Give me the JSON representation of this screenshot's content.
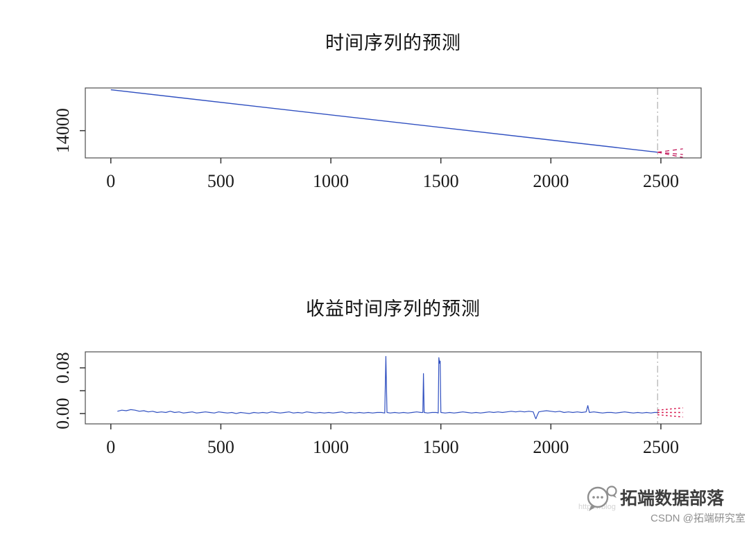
{
  "page": {
    "background": "#ffffff"
  },
  "chart_data": [
    {
      "type": "line",
      "title": "时间序列的预测",
      "xlabel": "",
      "ylabel": "",
      "xlim": [
        -116,
        2683
      ],
      "ylim": [
        12800,
        15880
      ],
      "grid": false,
      "legend": "none",
      "xticks": [
        0,
        500,
        1000,
        1500,
        2000,
        2500
      ],
      "yticks": [
        {
          "value": 14000,
          "label": "14000"
        }
      ],
      "vline_x": 2485,
      "vline_color": "#a0a0a0",
      "series": [
        {
          "name": "historical",
          "color": "#2f4fc0",
          "style": "solid",
          "width": 1.4,
          "points": [
            [
              0,
              15800
            ],
            [
              2485,
              13050
            ]
          ]
        },
        {
          "name": "forecast-upper",
          "color": "#c2185b",
          "style": "dashed",
          "width": 1.3,
          "points": [
            [
              2485,
              13050
            ],
            [
              2600,
              13200
            ]
          ]
        },
        {
          "name": "forecast-mean",
          "color": "#c2185b",
          "style": "dashed",
          "width": 1.3,
          "points": [
            [
              2485,
              13050
            ],
            [
              2600,
              12950
            ]
          ]
        },
        {
          "name": "forecast-lower",
          "color": "#c2185b",
          "style": "dashed",
          "width": 1.3,
          "points": [
            [
              2485,
              13050
            ],
            [
              2600,
              12820
            ]
          ]
        }
      ]
    },
    {
      "type": "line",
      "title": "收益时间序列的预测",
      "xlabel": "",
      "ylabel": "",
      "xlim": [
        -116,
        2683
      ],
      "ylim": [
        -0.018,
        0.108
      ],
      "grid": false,
      "legend": "none",
      "xticks": [
        0,
        500,
        1000,
        1500,
        2000,
        2500
      ],
      "yticks": [
        {
          "value": 0.0,
          "label": "0.00"
        },
        {
          "value": 0.04,
          "label": ""
        },
        {
          "value": 0.08,
          "label": "0.08"
        }
      ],
      "vline_x": 2485,
      "vline_color": "#a0a0a0",
      "series": [
        {
          "name": "returns",
          "color": "#2f4fc0",
          "style": "solid",
          "width": 1.2,
          "points": [
            [
              30,
              0.004
            ],
            [
              50,
              0.006
            ],
            [
              70,
              0.005
            ],
            [
              90,
              0.007
            ],
            [
              110,
              0.006
            ],
            [
              130,
              0.004
            ],
            [
              150,
              0.005
            ],
            [
              170,
              0.003
            ],
            [
              190,
              0.004
            ],
            [
              210,
              0.002
            ],
            [
              230,
              0.003
            ],
            [
              250,
              0.002
            ],
            [
              270,
              0.004
            ],
            [
              290,
              0.002
            ],
            [
              310,
              0.003
            ],
            [
              330,
              0.001
            ],
            [
              350,
              0.002
            ],
            [
              370,
              0.003
            ],
            [
              390,
              0.001
            ],
            [
              410,
              0.002
            ],
            [
              430,
              0.003
            ],
            [
              450,
              0.002
            ],
            [
              470,
              0.001
            ],
            [
              490,
              0.003
            ],
            [
              510,
              0.002
            ],
            [
              530,
              0.001
            ],
            [
              550,
              0.002
            ],
            [
              570,
              0.0
            ],
            [
              590,
              0.002
            ],
            [
              610,
              0.001
            ],
            [
              630,
              0.0
            ],
            [
              650,
              0.002
            ],
            [
              670,
              0.001
            ],
            [
              690,
              0.002
            ],
            [
              710,
              0.001
            ],
            [
              730,
              0.003
            ],
            [
              750,
              0.002
            ],
            [
              770,
              0.001
            ],
            [
              790,
              0.002
            ],
            [
              810,
              0.003
            ],
            [
              830,
              0.001
            ],
            [
              850,
              0.002
            ],
            [
              870,
              0.001
            ],
            [
              890,
              0.003
            ],
            [
              910,
              0.002
            ],
            [
              930,
              0.001
            ],
            [
              950,
              0.002
            ],
            [
              970,
              0.001
            ],
            [
              990,
              0.002
            ],
            [
              1010,
              0.001
            ],
            [
              1030,
              0.002
            ],
            [
              1050,
              0.003
            ],
            [
              1070,
              0.001
            ],
            [
              1090,
              0.002
            ],
            [
              1110,
              0.001
            ],
            [
              1130,
              0.002
            ],
            [
              1150,
              0.001
            ],
            [
              1170,
              0.002
            ],
            [
              1190,
              0.001
            ],
            [
              1210,
              0.002
            ],
            [
              1230,
              0.002
            ],
            [
              1245,
              0.001
            ],
            [
              1250,
              0.1
            ],
            [
              1255,
              0.002
            ],
            [
              1270,
              0.001
            ],
            [
              1290,
              0.002
            ],
            [
              1310,
              0.001
            ],
            [
              1330,
              0.002
            ],
            [
              1350,
              0.001
            ],
            [
              1370,
              0.002
            ],
            [
              1390,
              0.003
            ],
            [
              1410,
              0.002
            ],
            [
              1418,
              0.002
            ],
            [
              1421,
              0.07
            ],
            [
              1424,
              0.002
            ],
            [
              1440,
              0.001
            ],
            [
              1460,
              0.002
            ],
            [
              1480,
              0.002
            ],
            [
              1488,
              0.001
            ],
            [
              1491,
              0.098
            ],
            [
              1494,
              0.088
            ],
            [
              1497,
              0.092
            ],
            [
              1500,
              0.002
            ],
            [
              1520,
              0.001
            ],
            [
              1540,
              0.002
            ],
            [
              1560,
              0.001
            ],
            [
              1580,
              0.002
            ],
            [
              1600,
              0.003
            ],
            [
              1620,
              0.002
            ],
            [
              1640,
              0.001
            ],
            [
              1660,
              0.002
            ],
            [
              1680,
              0.001
            ],
            [
              1700,
              0.002
            ],
            [
              1720,
              0.003
            ],
            [
              1740,
              0.002
            ],
            [
              1760,
              0.003
            ],
            [
              1780,
              0.002
            ],
            [
              1800,
              0.003
            ],
            [
              1820,
              0.004
            ],
            [
              1840,
              0.003
            ],
            [
              1860,
              0.004
            ],
            [
              1880,
              0.003
            ],
            [
              1900,
              0.004
            ],
            [
              1920,
              0.003
            ],
            [
              1928,
              -0.006
            ],
            [
              1932,
              -0.009
            ],
            [
              1936,
              -0.005
            ],
            [
              1945,
              0.003
            ],
            [
              1960,
              0.004
            ],
            [
              1980,
              0.005
            ],
            [
              2000,
              0.004
            ],
            [
              2020,
              0.003
            ],
            [
              2040,
              0.004
            ],
            [
              2060,
              0.002
            ],
            [
              2080,
              0.003
            ],
            [
              2100,
              0.002
            ],
            [
              2120,
              0.003
            ],
            [
              2140,
              0.002
            ],
            [
              2160,
              0.003
            ],
            [
              2168,
              0.014
            ],
            [
              2175,
              0.002
            ],
            [
              2195,
              0.003
            ],
            [
              2215,
              0.002
            ],
            [
              2235,
              0.001
            ],
            [
              2255,
              0.002
            ],
            [
              2275,
              0.002
            ],
            [
              2295,
              0.001
            ],
            [
              2315,
              0.002
            ],
            [
              2335,
              0.003
            ],
            [
              2355,
              0.002
            ],
            [
              2375,
              0.001
            ],
            [
              2395,
              0.002
            ],
            [
              2415,
              0.001
            ],
            [
              2435,
              0.002
            ],
            [
              2455,
              0.001
            ],
            [
              2470,
              0.002
            ],
            [
              2485,
              0.002
            ]
          ]
        },
        {
          "name": "forecast-upper",
          "color": "#d4003c",
          "style": "dotted",
          "width": 1.4,
          "points": [
            [
              2485,
              0.006
            ],
            [
              2600,
              0.01
            ]
          ]
        },
        {
          "name": "forecast-mean",
          "color": "#d4003c",
          "style": "dotted",
          "width": 1.4,
          "points": [
            [
              2485,
              0.002
            ],
            [
              2600,
              0.002
            ]
          ]
        },
        {
          "name": "forecast-lower",
          "color": "#d4003c",
          "style": "dotted",
          "width": 1.4,
          "points": [
            [
              2485,
              -0.002
            ],
            [
              2600,
              -0.006
            ]
          ]
        }
      ]
    }
  ],
  "watermark": {
    "icon": "chat-bubbles-icon",
    "brand": "拓端数据部落",
    "credit": "CSDN @拓端研究室",
    "url_watermark": "https://blog"
  }
}
